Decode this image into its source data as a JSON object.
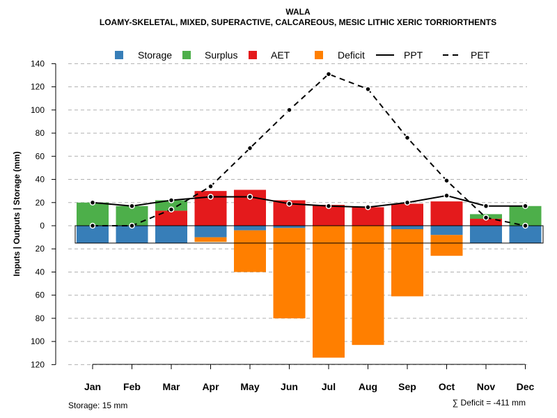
{
  "chart_data": {
    "type": "bar",
    "title": "WALA",
    "subtitle": "LOAMY-SKELETAL, MIXED, SUPERACTIVE, CALCAREOUS, MESIC LITHIC XERIC TORRIORTHENTS",
    "ylabel": "Inputs | Outputs | Storage    (mm)",
    "ylim": [
      -120,
      140
    ],
    "yticks": [
      140,
      120,
      100,
      80,
      60,
      40,
      20,
      0,
      -20,
      -40,
      -60,
      -80,
      -100,
      -120
    ],
    "ytick_labels": [
      "140",
      "120",
      "100",
      "80",
      "60",
      "40",
      "20",
      "0",
      "20",
      "40",
      "60",
      "80",
      "100",
      "120"
    ],
    "grid": true,
    "legend_position": "top",
    "categories": [
      "Jan",
      "Feb",
      "Mar",
      "Apr",
      "May",
      "Jun",
      "Jul",
      "Aug",
      "Sep",
      "Oct",
      "Nov",
      "Dec"
    ],
    "series": [
      {
        "name": "Storage",
        "kind": "bar",
        "color": "#377eb8",
        "values": [
          -15,
          -15,
          -15,
          -10,
          -4,
          -2,
          0,
          0,
          -3,
          -8,
          -15,
          -15
        ]
      },
      {
        "name": "Surplus",
        "kind": "bar",
        "color": "#4daf4a",
        "values": [
          20,
          17,
          9,
          0,
          0,
          0,
          0,
          0,
          0,
          0,
          4,
          17
        ]
      },
      {
        "name": "AET",
        "kind": "bar",
        "color": "#e41a1c",
        "values": [
          0,
          0,
          13,
          30,
          31,
          22,
          18,
          16,
          19,
          21,
          6,
          0
        ]
      },
      {
        "name": "Deficit",
        "kind": "bar",
        "color": "#ff7f00",
        "values": [
          0,
          0,
          0,
          -4,
          -36,
          -78,
          -114,
          -103,
          -58,
          -18,
          0,
          0
        ]
      },
      {
        "name": "PPT",
        "kind": "line",
        "style": "solid",
        "color": "#000000",
        "values": [
          20,
          17,
          22,
          25,
          25,
          19,
          17,
          16,
          20,
          26,
          17,
          17
        ]
      },
      {
        "name": "PET",
        "kind": "line",
        "style": "dashed",
        "color": "#000000",
        "values": [
          0,
          0,
          14,
          34,
          67,
          100,
          131,
          118,
          76,
          39,
          7,
          0
        ]
      }
    ],
    "storage_capacity_box": {
      "from": 0,
      "to": -15
    },
    "annotations": {
      "storage_label": "Storage: 15 mm",
      "deficit_label": "∑ Deficit = -411 mm"
    }
  }
}
